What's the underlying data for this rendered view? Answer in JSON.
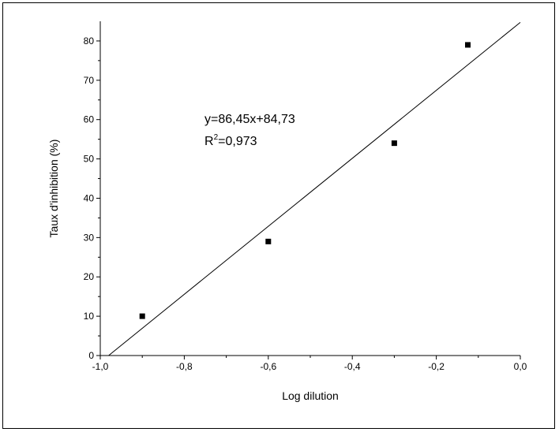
{
  "chart_data": {
    "type": "scatter",
    "xlabel": "Log dilution",
    "ylabel": "Taux d'inhibition (%)",
    "xlim": [
      -1.0,
      0.0
    ],
    "ylim": [
      0,
      85
    ],
    "x_ticks": [
      "-1,0",
      "-0,8",
      "-0,6",
      "-0,4",
      "-0,2",
      "0,0"
    ],
    "y_ticks": [
      "0",
      "10",
      "20",
      "30",
      "40",
      "50",
      "60",
      "70",
      "80"
    ],
    "series": [
      {
        "x": [
          -0.9,
          -0.6,
          -0.3,
          -0.125
        ],
        "y": [
          10,
          29,
          54,
          79
        ]
      }
    ],
    "fit_line": {
      "slope": 86.45,
      "intercept": 84.73
    },
    "annotation": {
      "equation": "y=86,45x+84,73",
      "r2_prefix": "R",
      "r2_sup": "2",
      "r2_value": "=0,973"
    },
    "grid": false,
    "legend": "none"
  }
}
